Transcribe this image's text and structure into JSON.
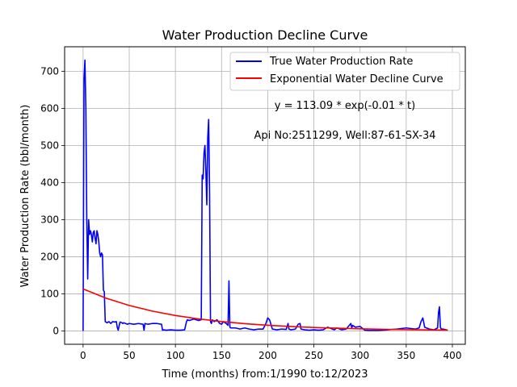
{
  "chart_data": {
    "type": "line",
    "title": "Water Production Decline Curve",
    "xlabel": "Time (months) from:1/1990 to:12/2023",
    "ylabel": "Water Production Rate (bbl/month)",
    "xlim": [
      -20,
      414
    ],
    "ylim": [
      -36,
      766
    ],
    "x_ticks": [
      0,
      50,
      100,
      150,
      200,
      250,
      300,
      350,
      400
    ],
    "y_ticks": [
      0,
      100,
      200,
      300,
      400,
      500,
      600,
      700
    ],
    "grid": true,
    "legend_position": "top-right",
    "annotations": [
      "y = 113.09 * exp(-0.01 * t)",
      "Api No:2511299, Well:87-61-SX-34"
    ],
    "series": [
      {
        "name": "True Water Production Rate",
        "color": "#0000ff",
        "x": [
          0,
          1,
          2,
          3,
          4,
          5,
          6,
          7,
          8,
          9,
          10,
          11,
          12,
          13,
          14,
          15,
          16,
          17,
          18,
          19,
          20,
          21,
          22,
          23,
          24,
          26,
          28,
          30,
          32,
          34,
          36,
          37,
          38,
          40,
          42,
          43,
          44,
          46,
          48,
          50,
          55,
          60,
          65,
          66,
          67,
          70,
          75,
          80,
          85,
          86,
          87,
          90,
          95,
          100,
          105,
          110,
          112,
          113,
          115,
          120,
          125,
          128,
          129,
          130,
          131,
          132,
          133,
          134,
          135,
          136,
          137,
          138,
          139,
          140,
          142,
          145,
          148,
          150,
          152,
          155,
          157,
          158,
          159,
          160,
          165,
          170,
          175,
          180,
          185,
          190,
          195,
          198,
          200,
          202,
          205,
          210,
          215,
          220,
          222,
          223,
          225,
          230,
          233,
          235,
          236,
          240,
          245,
          250,
          255,
          260,
          265,
          270,
          272,
          275,
          280,
          285,
          290,
          291,
          292,
          295,
          300,
          305,
          310,
          320,
          330,
          340,
          350,
          360,
          364,
          366,
          368,
          370,
          375,
          380,
          384,
          385,
          386,
          387,
          388,
          390,
          395
        ],
        "y": [
          0,
          680,
          730,
          600,
          300,
          140,
          300,
          260,
          270,
          260,
          240,
          265,
          270,
          250,
          235,
          270,
          260,
          240,
          210,
          200,
          210,
          205,
          110,
          105,
          25,
          22,
          25,
          20,
          25,
          24,
          25,
          10,
          2,
          24,
          22,
          20,
          22,
          20,
          18,
          20,
          18,
          20,
          18,
          2,
          20,
          18,
          20,
          20,
          18,
          2,
          3,
          2,
          3,
          2,
          2,
          3,
          25,
          30,
          28,
          32,
          28,
          30,
          420,
          410,
          480,
          500,
          430,
          340,
          520,
          570,
          380,
          25,
          20,
          30,
          25,
          30,
          20,
          18,
          25,
          20,
          15,
          135,
          10,
          8,
          8,
          5,
          8,
          5,
          3,
          5,
          5,
          20,
          35,
          30,
          5,
          3,
          5,
          4,
          20,
          5,
          3,
          5,
          18,
          20,
          5,
          3,
          2,
          3,
          2,
          3,
          10,
          5,
          3,
          8,
          3,
          5,
          20,
          8,
          15,
          10,
          12,
          2,
          1,
          1,
          3,
          5,
          8,
          5,
          8,
          25,
          35,
          10,
          5,
          3,
          8,
          50,
          65,
          10,
          5,
          5,
          2
        ]
      },
      {
        "name": "Exponential Water Decline Curve",
        "color": "#ff0000",
        "function": "113.09 * exp(-0.01 * t)",
        "x": [
          0,
          25,
          50,
          75,
          100,
          125,
          150,
          175,
          200,
          225,
          250,
          275,
          300,
          325,
          350,
          375,
          395
        ],
        "y": [
          113.09,
          88.07,
          68.59,
          53.42,
          41.6,
          32.4,
          25.23,
          19.65,
          15.3,
          11.92,
          9.28,
          7.23,
          5.63,
          4.38,
          3.41,
          2.66,
          2.18
        ]
      }
    ]
  }
}
